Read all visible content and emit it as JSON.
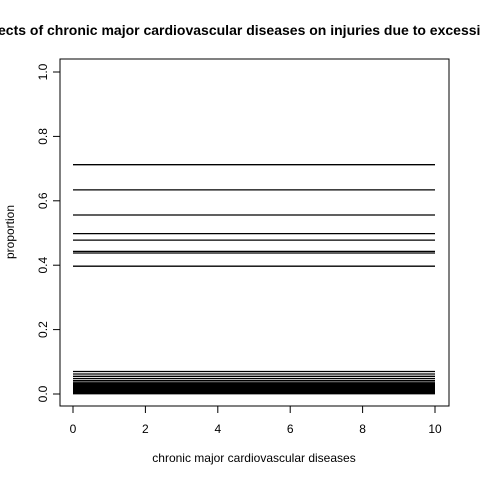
{
  "chart_data": {
    "type": "line",
    "title": "Effects of chronic major cardiovascular diseases on injuries due to excessive heat",
    "xlabel": "chronic major cardiovascular diseases",
    "ylabel": "proportion",
    "xlim": [
      0,
      10
    ],
    "ylim": [
      0,
      1
    ],
    "x_ticks": [
      "0",
      "2",
      "4",
      "6",
      "8",
      "10"
    ],
    "y_ticks": [
      "0.0",
      "0.2",
      "0.4",
      "0.6",
      "0.8",
      "1.0"
    ],
    "grid": false,
    "legend": "none",
    "line_color": "#000000",
    "series": [
      {
        "x": [
          0,
          10
        ],
        "y": [
          0.712,
          0.712
        ]
      },
      {
        "x": [
          0,
          10
        ],
        "y": [
          0.634,
          0.634
        ]
      },
      {
        "x": [
          0,
          10
        ],
        "y": [
          0.556,
          0.556
        ]
      },
      {
        "x": [
          0,
          10
        ],
        "y": [
          0.498,
          0.498
        ]
      },
      {
        "x": [
          0,
          10
        ],
        "y": [
          0.478,
          0.478
        ]
      },
      {
        "x": [
          0,
          10
        ],
        "y": [
          0.443,
          0.443
        ]
      },
      {
        "x": [
          0,
          10
        ],
        "y": [
          0.438,
          0.438
        ]
      },
      {
        "x": [
          0,
          10
        ],
        "y": [
          0.397,
          0.397
        ]
      },
      {
        "x": [
          0,
          10
        ],
        "y": [
          0.07,
          0.07
        ]
      },
      {
        "x": [
          0,
          10
        ],
        "y": [
          0.062,
          0.062
        ]
      },
      {
        "x": [
          0,
          10
        ],
        "y": [
          0.055,
          0.055
        ]
      },
      {
        "x": [
          0,
          10
        ],
        "y": [
          0.048,
          0.048
        ]
      },
      {
        "x": [
          0,
          10
        ],
        "y": [
          0.042,
          0.042
        ]
      },
      {
        "x": [
          0,
          10
        ],
        "y": [
          0.037,
          0.037
        ]
      },
      {
        "x": [
          0,
          10
        ],
        "y": [
          0.033,
          0.033
        ]
      },
      {
        "x": [
          0,
          10
        ],
        "y": [
          0.03,
          0.03
        ]
      },
      {
        "x": [
          0,
          10
        ],
        "y": [
          0.027,
          0.027
        ]
      },
      {
        "x": [
          0,
          10
        ],
        "y": [
          0.024,
          0.024
        ]
      },
      {
        "x": [
          0,
          10
        ],
        "y": [
          0.021,
          0.021
        ]
      },
      {
        "x": [
          0,
          10
        ],
        "y": [
          0.018,
          0.018
        ]
      },
      {
        "x": [
          0,
          10
        ],
        "y": [
          0.015,
          0.015
        ]
      },
      {
        "x": [
          0,
          10
        ],
        "y": [
          0.012,
          0.012
        ]
      },
      {
        "x": [
          0,
          10
        ],
        "y": [
          0.009,
          0.009
        ]
      },
      {
        "x": [
          0,
          10
        ],
        "y": [
          0.006,
          0.006
        ]
      },
      {
        "x": [
          0,
          10
        ],
        "y": [
          0.003,
          0.003
        ]
      },
      {
        "x": [
          0,
          10
        ],
        "y": [
          0.001,
          0.001
        ]
      }
    ]
  }
}
